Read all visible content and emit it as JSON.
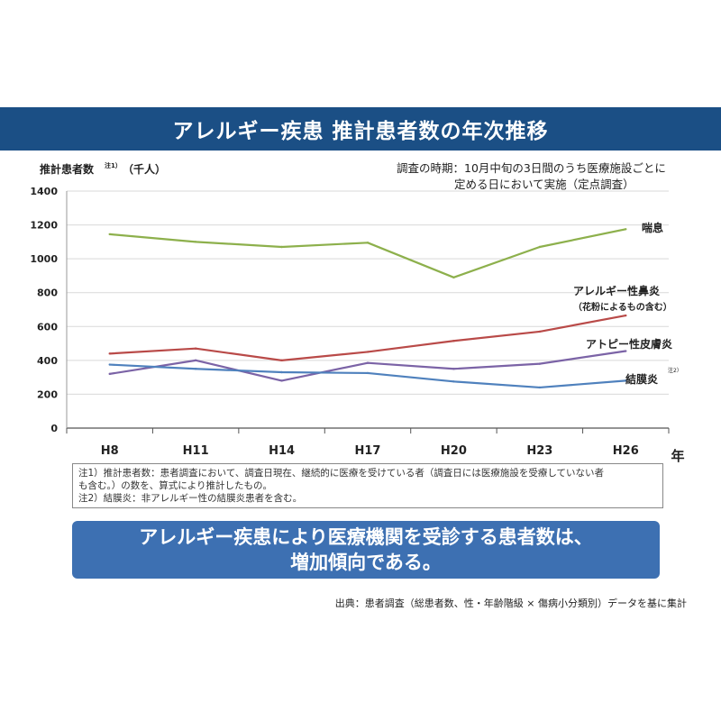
{
  "title": "アレルギー疾患 推計患者数の年次推移",
  "survey_period": {
    "line1": "調査の時期：10月中旬の3日間のうち医療施設ごとに",
    "line2": "定める日において実施（定点調査）"
  },
  "notes": {
    "line1": "注1）推計患者数：患者調査において、調査日現在、継続的に医療を受けている者（調査日には医療施設を受療していない者",
    "line2": "も含む。）の数を、算式により推計したもの。",
    "line3": "注2）結膜炎：非アレルギー性の結膜炎患者を含む。"
  },
  "callout": {
    "line1": "アレルギー疾患により医療機関を受診する患者数は、",
    "line2": "増加傾向である。"
  },
  "source": "出典：患者調査（総患者数、性・年齢階級 × 傷病小分類別）データを基に集計",
  "chart_data": {
    "type": "line",
    "ylabel": "推計患者数",
    "ylabel_note": "注1）",
    "ylabel_unit": "（千人）",
    "xlabel": "年",
    "categories": [
      "H8",
      "H11",
      "H14",
      "H17",
      "H20",
      "H23",
      "H26"
    ],
    "ylim": [
      0,
      1400
    ],
    "yticks": [
      0,
      200,
      400,
      600,
      800,
      1000,
      1200,
      1400
    ],
    "grid": "horizontal",
    "series": [
      {
        "name": "喘息",
        "color": "#8db04c",
        "values": [
          1145,
          1100,
          1070,
          1095,
          890,
          1070,
          1175
        ]
      },
      {
        "name": "アレルギー性鼻炎",
        "sublabel": "（花粉によるもの含む）",
        "color": "#b94a48",
        "values": [
          440,
          470,
          400,
          450,
          515,
          570,
          665
        ]
      },
      {
        "name": "アトピー性皮膚炎",
        "color": "#7b63a6",
        "values": [
          320,
          400,
          280,
          385,
          350,
          380,
          455
        ]
      },
      {
        "name": "結膜炎",
        "note": "注2）",
        "color": "#4f81bd",
        "values": [
          375,
          350,
          330,
          325,
          275,
          240,
          280
        ]
      }
    ]
  }
}
